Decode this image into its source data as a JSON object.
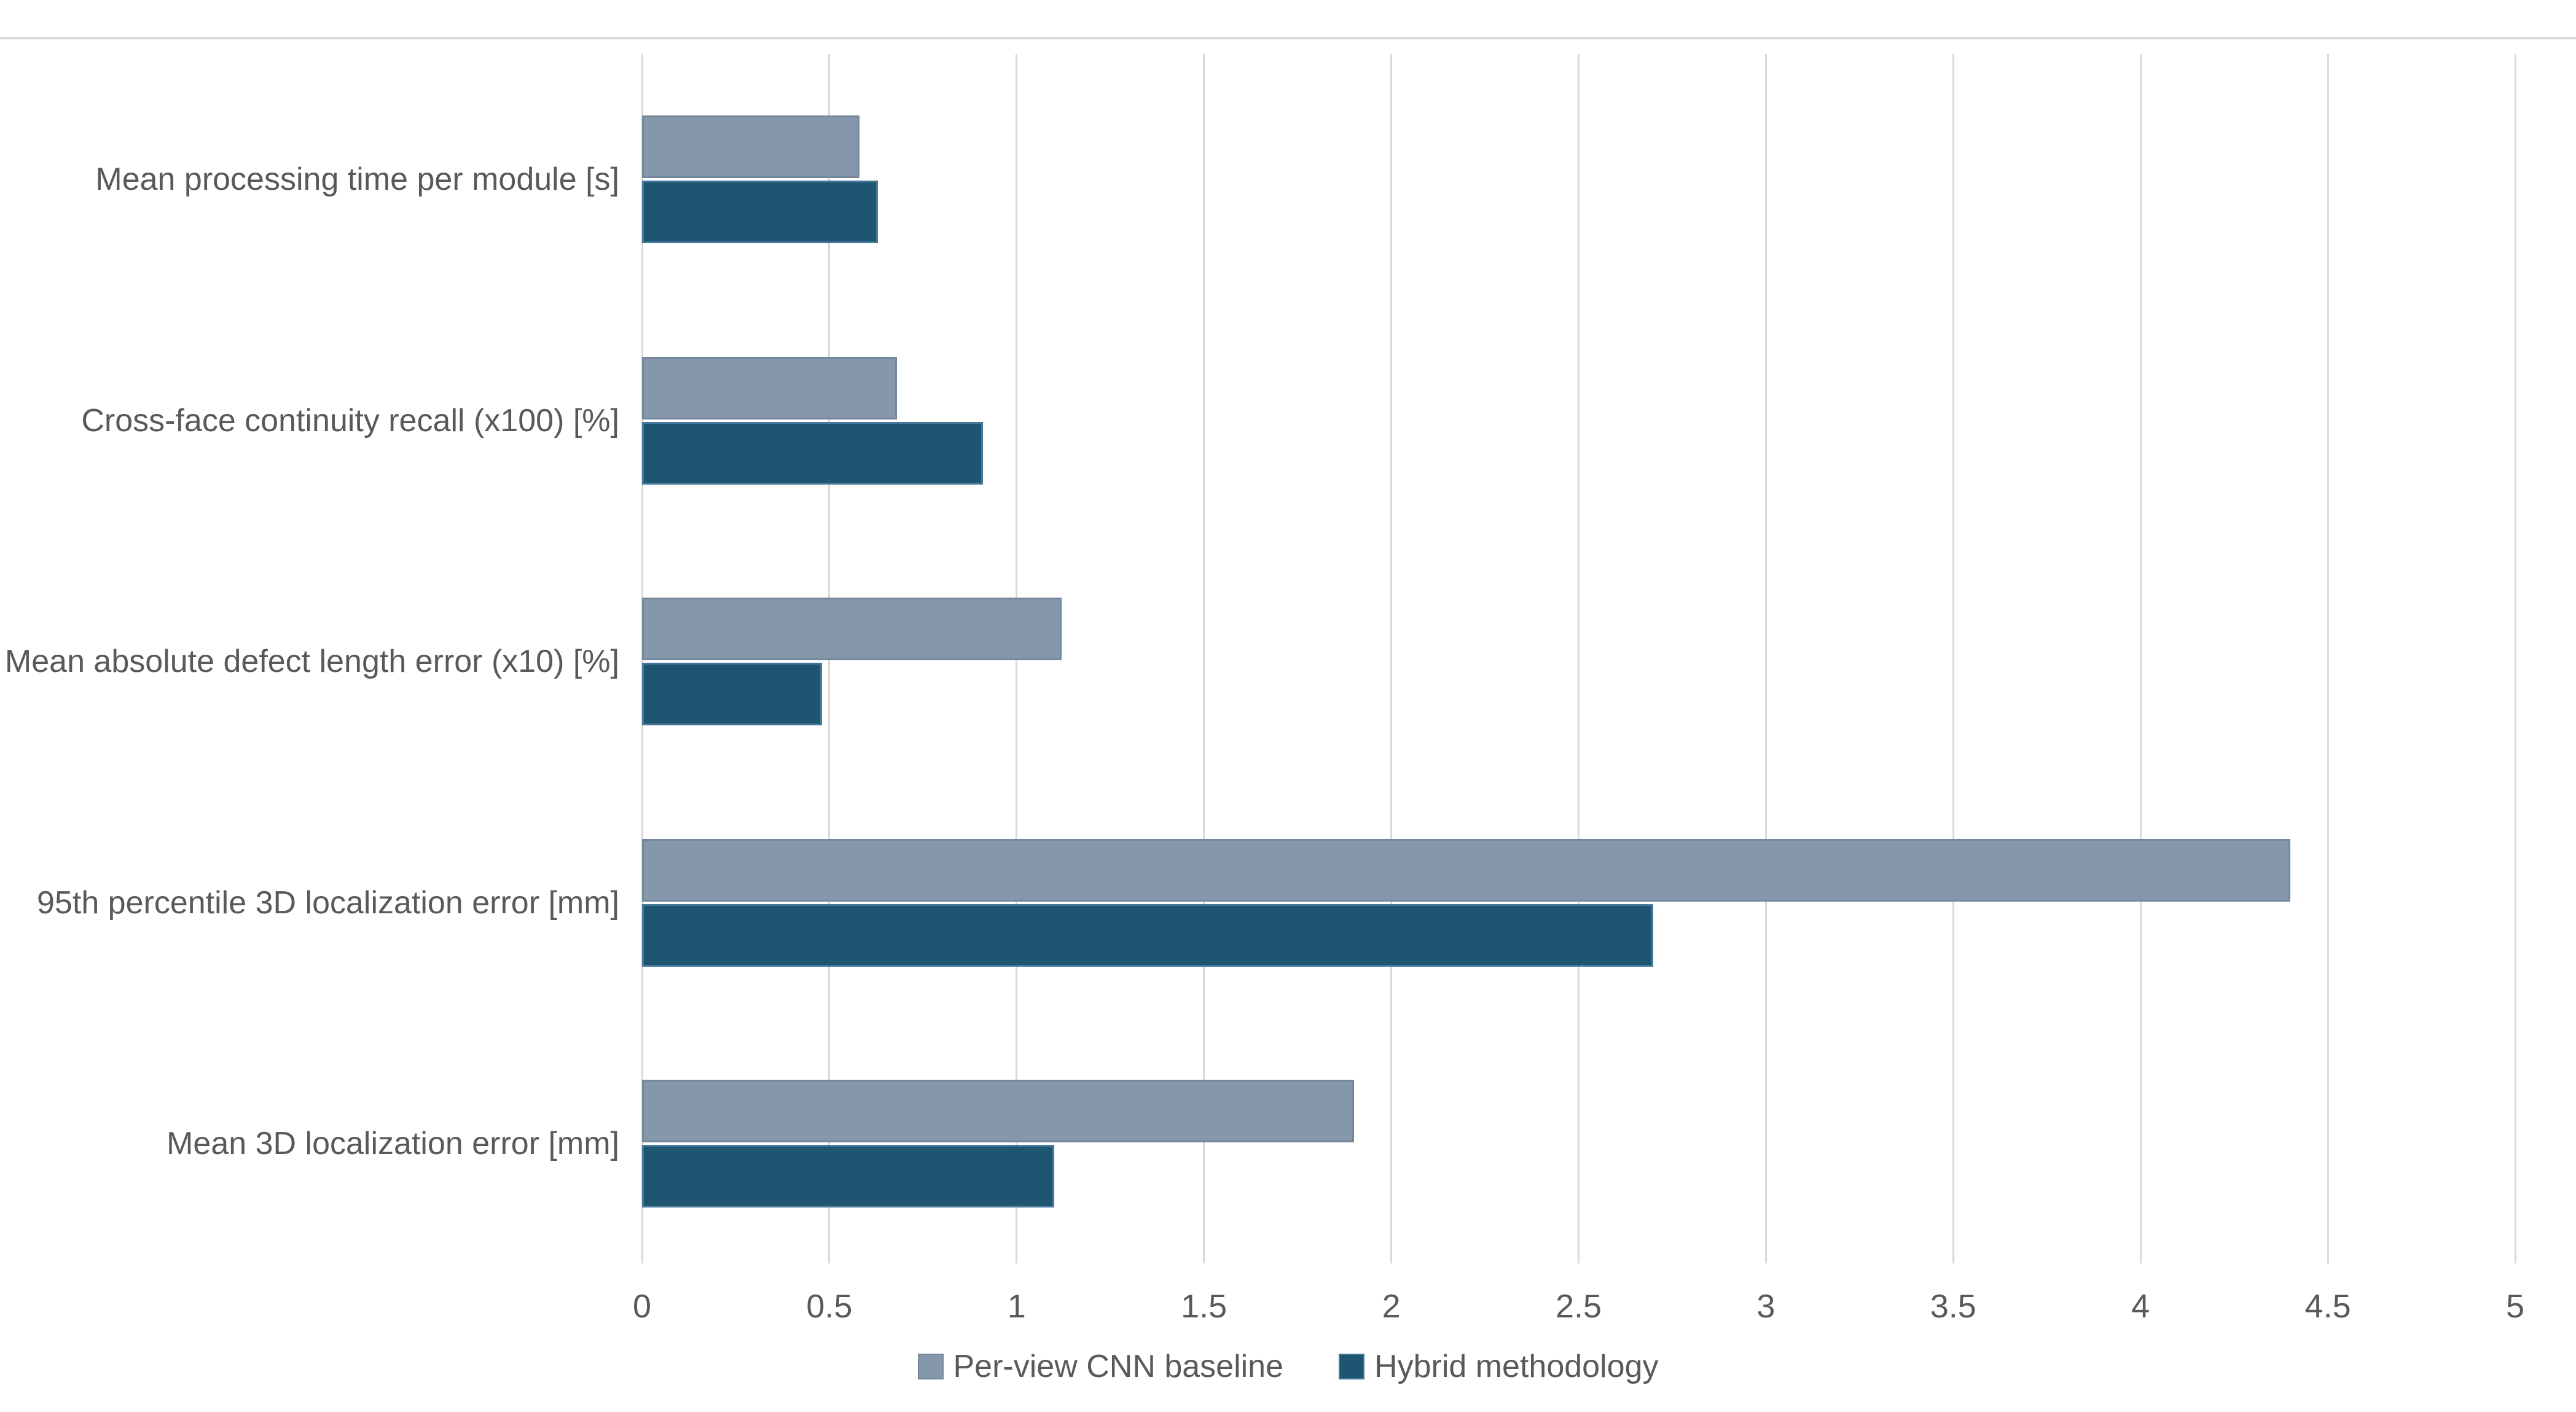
{
  "chart_data": {
    "type": "bar",
    "orientation": "horizontal",
    "title": "",
    "xlabel": "",
    "ylabel": "",
    "xlim": [
      0,
      5
    ],
    "grid": true,
    "legend_position": "bottom",
    "categories": [
      "Mean processing time per module [s]",
      "Cross-face continuity recall (x100) [%]",
      "Mean absolute defect length error (x10) [%]",
      "95th percentile 3D localization error [mm]",
      "Mean 3D localization error [mm]"
    ],
    "series": [
      {
        "name": "Per-view CNN baseline",
        "color": "#8598AB",
        "border_color": "#75879B",
        "values": [
          0.58,
          0.68,
          1.12,
          4.4,
          1.9
        ]
      },
      {
        "name": "Hybrid methodology",
        "color": "#1E5571",
        "border_color": "#46789B",
        "values": [
          0.63,
          0.91,
          0.48,
          2.7,
          1.1
        ]
      }
    ],
    "xticks": [
      "0",
      "0.5",
      "1",
      "1.5",
      "2",
      "2.5",
      "3",
      "3.5",
      "4",
      "4.5",
      "5"
    ]
  },
  "colors": {
    "background": "#FFFFFF",
    "gridline": "#D9D9D9",
    "top_border": "#D9D9D9",
    "text": "#595959"
  }
}
